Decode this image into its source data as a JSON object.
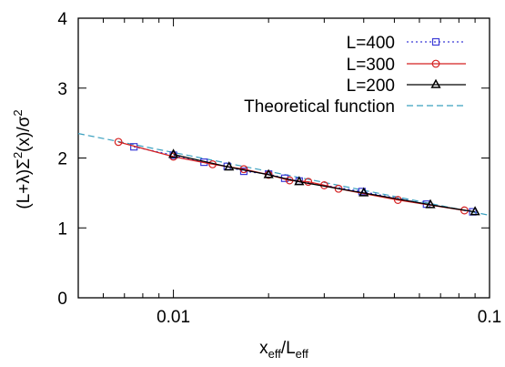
{
  "chart_data": {
    "type": "line",
    "title": "",
    "xlabel": {
      "base": "x",
      "sub1": "eff",
      "mid": "/L",
      "sub2": "eff"
    },
    "ylabel": {
      "p1": "(L+λ)Σ",
      "sup1": "2",
      "p2": "(x)/σ",
      "sup2": "2"
    },
    "x_scale": "log",
    "xlim": [
      0.005,
      0.1
    ],
    "ylim": [
      0,
      4
    ],
    "x_ticks": [
      {
        "value": 0.01,
        "label": "0.01"
      },
      {
        "value": 0.1,
        "label": "0.1"
      }
    ],
    "y_ticks": [
      {
        "value": 0,
        "label": "0"
      },
      {
        "value": 1,
        "label": "1"
      },
      {
        "value": 2,
        "label": "2"
      },
      {
        "value": 3,
        "label": "3"
      },
      {
        "value": 4,
        "label": "4"
      }
    ],
    "grid": false,
    "legend_position": "top-right",
    "series": [
      {
        "name": "L=400",
        "color": "#3b3bd6",
        "line_style": "dotted",
        "marker": "square",
        "x": [
          0.0075,
          0.01,
          0.0125,
          0.0148,
          0.0167,
          0.02,
          0.0225,
          0.025,
          0.0395,
          0.0632,
          0.0885
        ],
        "y": [
          2.16,
          2.04,
          1.94,
          1.88,
          1.81,
          1.77,
          1.71,
          1.67,
          1.52,
          1.34,
          1.23
        ]
      },
      {
        "name": "L=300",
        "color": "#d42020",
        "line_style": "solid",
        "marker": "circle",
        "x": [
          0.0067,
          0.01,
          0.0133,
          0.0167,
          0.02,
          0.0233,
          0.0267,
          0.03,
          0.0333,
          0.0513,
          0.0833
        ],
        "y": [
          2.23,
          2.02,
          1.91,
          1.84,
          1.76,
          1.68,
          1.66,
          1.61,
          1.56,
          1.4,
          1.25
        ]
      },
      {
        "name": "L=200",
        "color": "#000000",
        "line_style": "solid",
        "marker": "triangle",
        "x": [
          0.01,
          0.015,
          0.02,
          0.025,
          0.04,
          0.065,
          0.09
        ],
        "y": [
          2.05,
          1.87,
          1.76,
          1.66,
          1.5,
          1.33,
          1.23
        ]
      },
      {
        "name": "Theoretical function",
        "color": "#3aa0bf",
        "line_style": "dashed",
        "marker": "none",
        "x": [
          0.005,
          0.1
        ],
        "y": [
          2.35,
          1.18
        ]
      }
    ]
  }
}
